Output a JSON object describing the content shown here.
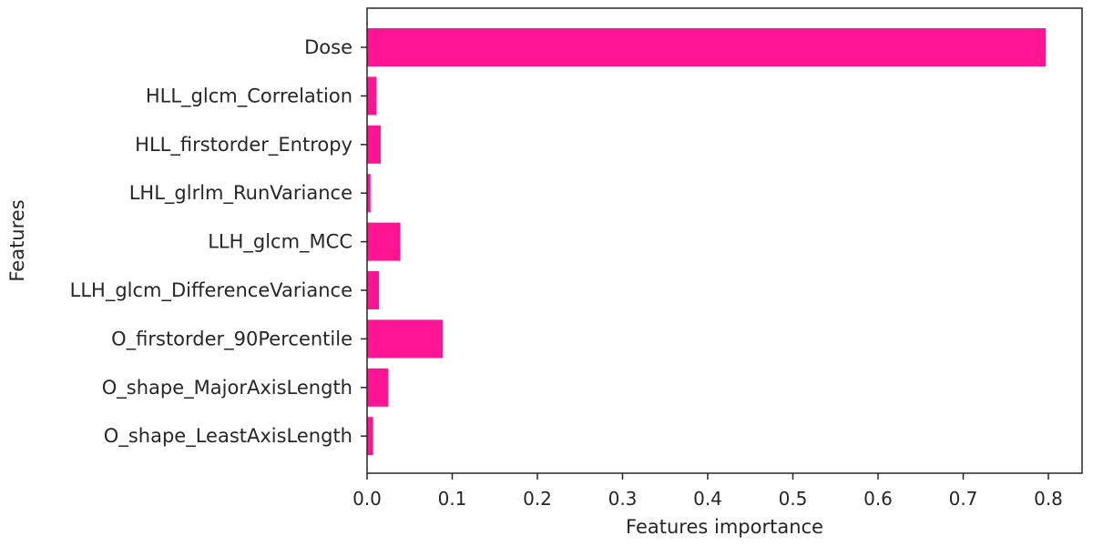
{
  "chart_data": {
    "type": "bar",
    "orientation": "horizontal",
    "title": "",
    "xlabel": "Features importance",
    "ylabel": "Features",
    "categories": [
      "Dose",
      "HLL_glcm_Correlation",
      "HLL_firstorder_Entropy",
      "LHL_glrlm_RunVariance",
      "LLH_glcm_MCC",
      "LLH_glcm_DifferenceVariance",
      "O_firstorder_90Percentile",
      "O_shape_MajorAxisLength",
      "O_shape_LeastAxisLength"
    ],
    "values": [
      0.797,
      0.011,
      0.016,
      0.004,
      0.039,
      0.014,
      0.089,
      0.025,
      0.007
    ],
    "xlim": [
      0.0,
      0.84
    ],
    "xticks": [
      0.0,
      0.1,
      0.2,
      0.3,
      0.4,
      0.5,
      0.6,
      0.7,
      0.8
    ],
    "xtick_labels": [
      "0.0",
      "0.1",
      "0.2",
      "0.3",
      "0.4",
      "0.5",
      "0.6",
      "0.7",
      "0.8"
    ],
    "bar_color": "#ff1493",
    "grid": false,
    "legend": "none"
  }
}
